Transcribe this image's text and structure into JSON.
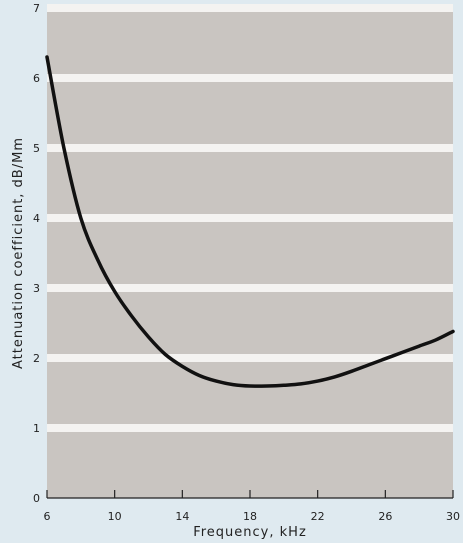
{
  "chart_data": {
    "type": "line",
    "title": "",
    "xlabel": "Frequency,  kHz",
    "ylabel": "Attenuation coefficient,  dB/Mm",
    "xlim": [
      6,
      30
    ],
    "ylim": [
      0,
      7
    ],
    "x_ticks": [
      "6",
      "10",
      "14",
      "18",
      "22",
      "26",
      "30"
    ],
    "y_ticks": [
      "0",
      "1",
      "2",
      "3",
      "4",
      "5",
      "6",
      "7"
    ],
    "grid": "horizontal white bands at each y tick",
    "legend": "none",
    "colors": {
      "page_background": "#dfeaf0",
      "plot_background": "#c9c5c1",
      "grid_band": "#f4f3f1",
      "curve": "#111111"
    },
    "series": [
      {
        "x": [
          6,
          7,
          8,
          9,
          10,
          11,
          12,
          13,
          14,
          15,
          16,
          17,
          18,
          19,
          20,
          21,
          22,
          23,
          24,
          25,
          26,
          27,
          28,
          29,
          30
        ],
        "y": [
          6.3,
          5.0,
          4.0,
          3.4,
          2.95,
          2.6,
          2.3,
          2.05,
          1.88,
          1.75,
          1.67,
          1.62,
          1.6,
          1.6,
          1.61,
          1.63,
          1.67,
          1.73,
          1.81,
          1.9,
          1.99,
          2.08,
          2.17,
          2.26,
          2.38
        ]
      }
    ]
  }
}
